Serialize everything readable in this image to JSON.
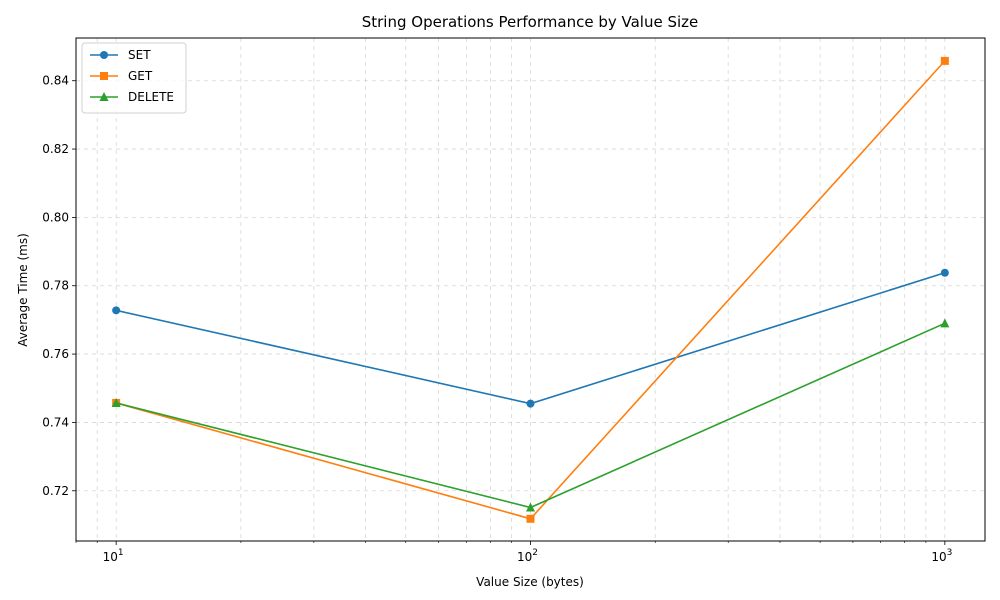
{
  "chart_data": {
    "type": "line",
    "title": "String Operations Performance by Value Size",
    "xlabel": "Value Size (bytes)",
    "ylabel": "Average Time (ms)",
    "x_scale": "log",
    "x": [
      10,
      100,
      1000
    ],
    "x_ticks": [
      {
        "value": 10,
        "base": "10",
        "exp": "1"
      },
      {
        "value": 100,
        "base": "10",
        "exp": "2"
      },
      {
        "value": 1000,
        "base": "10",
        "exp": "3"
      }
    ],
    "xlim": [
      8,
      1250
    ],
    "ylim": [
      0.7053,
      0.8525
    ],
    "y_ticks": [
      "0.72",
      "0.74",
      "0.76",
      "0.78",
      "0.80",
      "0.82",
      "0.84"
    ],
    "grid": true,
    "legend_position": "top-left",
    "series": [
      {
        "name": "SET",
        "values": [
          0.7728,
          0.7455,
          0.7838
        ],
        "color": "#1f77b4",
        "marker": "circle"
      },
      {
        "name": "GET",
        "values": [
          0.7457,
          0.7118,
          0.8458
        ],
        "color": "#ff7f0e",
        "marker": "square"
      },
      {
        "name": "DELETE",
        "values": [
          0.7457,
          0.7151,
          0.769
        ],
        "color": "#2ca02c",
        "marker": "triangle"
      }
    ]
  }
}
